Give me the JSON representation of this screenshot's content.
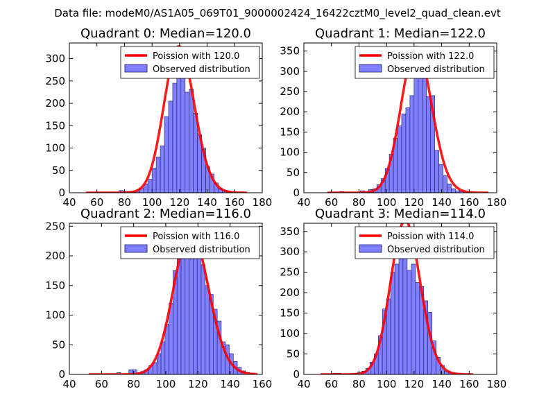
{
  "figure": {
    "suptitle": "Data file: modeM0/AS1A05_069T01_9000002424_16422cztM0_level2_quad_clean.evt",
    "colors": {
      "hist_fill": "#7f7fff",
      "hist_edge": "#1a1a66",
      "fit_line": "#ff0000"
    }
  },
  "chart_data": [
    {
      "type": "bar",
      "title": "Quadrant 0: Median=120.0",
      "xlim": [
        40,
        180
      ],
      "ylim": [
        0,
        335
      ],
      "xticks": [
        40,
        60,
        80,
        100,
        120,
        140,
        160,
        180
      ],
      "yticks": [
        0,
        50,
        100,
        150,
        200,
        250,
        300
      ],
      "legend": {
        "location": "top-right",
        "line_label": "Poission with 120.0",
        "bar_label": "Observed distribution"
      },
      "hist_bin_width": 3,
      "hist_bin_starts": [
        52,
        55,
        58,
        61,
        64,
        67,
        70,
        73,
        76,
        79,
        82,
        85,
        88,
        91,
        94,
        97,
        100,
        103,
        106,
        109,
        112,
        115,
        118,
        121,
        124,
        127,
        130,
        133,
        136,
        139,
        142,
        145,
        148,
        151,
        154,
        157,
        160,
        163,
        166
      ],
      "hist_counts": [
        0,
        0,
        0,
        0,
        0,
        0,
        0,
        0,
        5,
        3,
        3,
        4,
        3,
        10,
        20,
        30,
        55,
        80,
        105,
        170,
        205,
        245,
        265,
        305,
        225,
        232,
        178,
        130,
        100,
        58,
        42,
        22,
        10,
        5,
        3,
        2,
        0,
        0,
        0
      ],
      "poisson_mean": 120.0,
      "poisson_total": 3000
    },
    {
      "type": "bar",
      "title": "Quadrant 1: Median=122.0",
      "xlim": [
        40,
        180
      ],
      "ylim": [
        0,
        370
      ],
      "xticks": [
        40,
        60,
        80,
        100,
        120,
        140,
        160,
        180
      ],
      "yticks": [
        0,
        50,
        100,
        150,
        200,
        250,
        300,
        350
      ],
      "legend": {
        "location": "top-right",
        "line_label": "Poission with 122.0",
        "bar_label": "Observed distribution"
      },
      "hist_bin_width": 3,
      "hist_bin_starts": [
        57,
        60,
        63,
        66,
        69,
        72,
        75,
        78,
        81,
        84,
        87,
        90,
        93,
        96,
        99,
        102,
        105,
        108,
        111,
        114,
        117,
        120,
        123,
        126,
        129,
        132,
        135,
        138,
        141,
        144,
        147,
        150,
        153,
        156,
        159,
        162,
        165,
        168,
        171
      ],
      "hist_counts": [
        0,
        0,
        0,
        3,
        0,
        0,
        0,
        0,
        5,
        3,
        8,
        10,
        20,
        35,
        60,
        95,
        135,
        165,
        195,
        210,
        240,
        285,
        330,
        315,
        238,
        240,
        105,
        70,
        42,
        22,
        10,
        5,
        3,
        2,
        0,
        0,
        0,
        0,
        0
      ],
      "poisson_mean": 122.0,
      "poisson_total": 3320
    },
    {
      "type": "bar",
      "title": "Quadrant 2: Median=116.0",
      "xlim": [
        40,
        160
      ],
      "ylim": [
        0,
        255
      ],
      "xticks": [
        40,
        60,
        80,
        100,
        120,
        140,
        160
      ],
      "yticks": [
        0,
        50,
        100,
        150,
        200,
        250
      ],
      "legend": {
        "location": "top-right",
        "line_label": "Poission with 116.0",
        "bar_label": "Observed distribution"
      },
      "hist_bin_width": 2.5,
      "hist_bin_starts": [
        52,
        54.5,
        57,
        59.5,
        62,
        64.5,
        67,
        69.5,
        72,
        74.5,
        77,
        79.5,
        82,
        84.5,
        87,
        89.5,
        92,
        94.5,
        97,
        99.5,
        102,
        104.5,
        107,
        109.5,
        112,
        114.5,
        117,
        119.5,
        122,
        124.5,
        127,
        129.5,
        132,
        134.5,
        137,
        139.5,
        142,
        144.5,
        147,
        149.5,
        152,
        154.5
      ],
      "hist_counts": [
        0,
        0,
        0,
        0,
        0,
        0,
        0,
        3,
        0,
        0,
        8,
        8,
        3,
        5,
        8,
        15,
        20,
        35,
        55,
        85,
        120,
        175,
        195,
        210,
        225,
        235,
        230,
        205,
        185,
        150,
        135,
        110,
        90,
        55,
        50,
        35,
        22,
        12,
        6,
        3,
        2,
        0
      ],
      "poisson_mean": 116.0,
      "poisson_total": 2620
    },
    {
      "type": "bar",
      "title": "Quadrant 3: Median=114.0",
      "xlim": [
        40,
        180
      ],
      "ylim": [
        0,
        370
      ],
      "xticks": [
        40,
        60,
        80,
        100,
        120,
        140,
        160,
        180
      ],
      "yticks": [
        0,
        50,
        100,
        150,
        200,
        250,
        300,
        350
      ],
      "legend": {
        "location": "top-right",
        "line_label": "Poission with 114.0",
        "bar_label": "Observed distribution"
      },
      "hist_bin_width": 3,
      "hist_bin_starts": [
        52,
        55,
        58,
        61,
        64,
        67,
        70,
        73,
        76,
        79,
        82,
        85,
        88,
        91,
        94,
        97,
        100,
        103,
        106,
        109,
        112,
        115,
        118,
        121,
        124,
        127,
        130,
        133,
        136,
        139,
        142,
        145,
        148,
        151,
        154,
        157,
        160
      ],
      "hist_counts": [
        0,
        0,
        0,
        3,
        3,
        0,
        0,
        2,
        3,
        5,
        8,
        15,
        30,
        50,
        95,
        160,
        185,
        250,
        270,
        290,
        345,
        255,
        270,
        225,
        215,
        180,
        152,
        82,
        42,
        22,
        8,
        5,
        3,
        2,
        0,
        0,
        0
      ],
      "poisson_mean": 114.0,
      "poisson_total": 3360
    }
  ]
}
